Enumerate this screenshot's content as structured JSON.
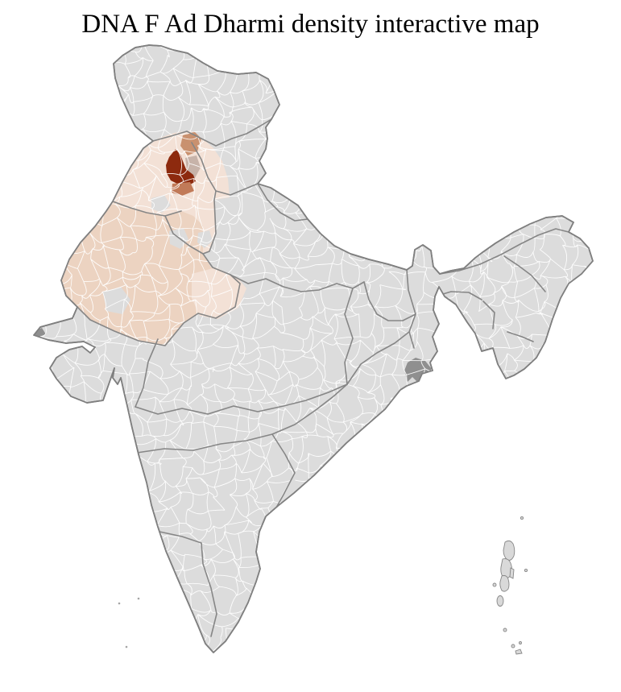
{
  "page": {
    "title": "DNA F Ad Dharmi density interactive map",
    "background": "#ffffff"
  },
  "map": {
    "colors": {
      "page_bg": "#ffffff",
      "base": "#dcdcdc",
      "district_line": "#ffffff",
      "state_line": "#868686",
      "outline": "#7f7f7f",
      "density_very_low": "#f3e1d6",
      "density_low": "#ecd3c1",
      "density_medium_tan": "#c9916f",
      "density_medium_mauve": "#c7b3a9",
      "density_high": "#c17a58",
      "density_highest": "#8d2a0e",
      "marsh": "#8f8f8f",
      "island_fill": "#d9d9d9"
    }
  }
}
